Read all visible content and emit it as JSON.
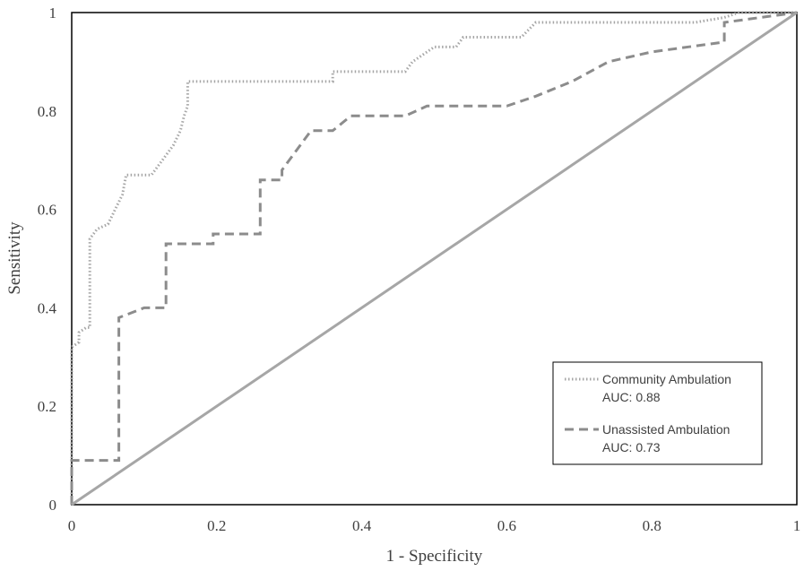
{
  "chart_data": {
    "type": "line",
    "title": "",
    "xlabel": "1 - Specificity",
    "ylabel": "Sensitivity",
    "xlim": [
      0,
      1
    ],
    "ylim": [
      0,
      1
    ],
    "grid": false,
    "legend_position": "bottom-right",
    "x_ticks": [
      "0",
      "0.2",
      "0.4",
      "0.6",
      "0.8",
      "1"
    ],
    "y_ticks": [
      "0",
      "0.2",
      "0.4",
      "0.6",
      "0.8",
      "1"
    ],
    "series": [
      {
        "name": "Community Ambulation",
        "auc_label": "AUC: 0.88",
        "style": "dotted",
        "color": "#a6a6a6",
        "points": [
          [
            0,
            0
          ],
          [
            0,
            0.32
          ],
          [
            0.01,
            0.33
          ],
          [
            0.01,
            0.35
          ],
          [
            0.02,
            0.36
          ],
          [
            0.025,
            0.36
          ],
          [
            0.025,
            0.54
          ],
          [
            0.035,
            0.56
          ],
          [
            0.05,
            0.57
          ],
          [
            0.06,
            0.6
          ],
          [
            0.07,
            0.63
          ],
          [
            0.075,
            0.67
          ],
          [
            0.11,
            0.67
          ],
          [
            0.12,
            0.69
          ],
          [
            0.14,
            0.73
          ],
          [
            0.15,
            0.76
          ],
          [
            0.155,
            0.79
          ],
          [
            0.16,
            0.81
          ],
          [
            0.16,
            0.86
          ],
          [
            0.36,
            0.86
          ],
          [
            0.36,
            0.88
          ],
          [
            0.46,
            0.88
          ],
          [
            0.47,
            0.9
          ],
          [
            0.5,
            0.93
          ],
          [
            0.53,
            0.93
          ],
          [
            0.54,
            0.95
          ],
          [
            0.62,
            0.95
          ],
          [
            0.64,
            0.98
          ],
          [
            0.86,
            0.98
          ],
          [
            0.9,
            0.99
          ],
          [
            0.92,
            1
          ],
          [
            1,
            1
          ]
        ]
      },
      {
        "name": "Unassisted Ambulation",
        "auc_label": "AUC: 0.73",
        "style": "dashed",
        "color": "#8c8c8c",
        "points": [
          [
            0,
            0
          ],
          [
            0,
            0.09
          ],
          [
            0.065,
            0.09
          ],
          [
            0.065,
            0.38
          ],
          [
            0.1,
            0.4
          ],
          [
            0.13,
            0.4
          ],
          [
            0.13,
            0.53
          ],
          [
            0.195,
            0.53
          ],
          [
            0.195,
            0.55
          ],
          [
            0.26,
            0.55
          ],
          [
            0.26,
            0.66
          ],
          [
            0.29,
            0.66
          ],
          [
            0.29,
            0.68
          ],
          [
            0.32,
            0.74
          ],
          [
            0.33,
            0.76
          ],
          [
            0.36,
            0.76
          ],
          [
            0.385,
            0.79
          ],
          [
            0.46,
            0.79
          ],
          [
            0.49,
            0.81
          ],
          [
            0.6,
            0.81
          ],
          [
            0.64,
            0.83
          ],
          [
            0.69,
            0.86
          ],
          [
            0.74,
            0.9
          ],
          [
            0.8,
            0.92
          ],
          [
            0.9,
            0.94
          ],
          [
            0.9,
            0.98
          ],
          [
            0.95,
            0.99
          ],
          [
            1,
            1
          ]
        ]
      },
      {
        "name": "Reference line",
        "style": "solid",
        "color": "#a6a6a6",
        "points": [
          [
            0,
            0
          ],
          [
            1,
            1
          ]
        ]
      }
    ]
  }
}
